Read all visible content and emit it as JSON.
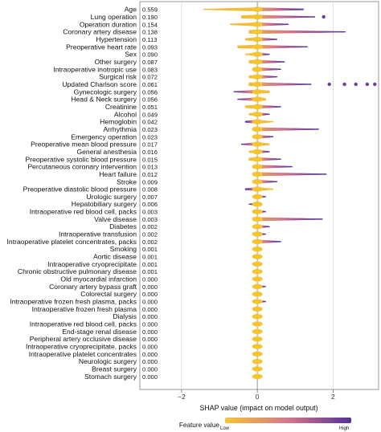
{
  "chart_data": {
    "type": "scatter",
    "title": "",
    "xlabel": "SHAP value (impact on model output)",
    "ylabel": "",
    "xlim": [
      -3.1,
      3.2
    ],
    "xticks": [
      -2,
      0,
      2
    ],
    "grid": true,
    "legend": {
      "title": "Feature value",
      "low": "Low",
      "high": "High",
      "position": "bottom-center"
    },
    "colors": {
      "low": "#f5c431",
      "mid": "#d5768a",
      "high": "#55309a",
      "zero_line": "#999999",
      "grid": "#d9d9d9"
    },
    "features": [
      {
        "name": "Age",
        "importance": "0.559",
        "neg": -1.4,
        "pos": 1.2,
        "high_side": "pos",
        "outliers": []
      },
      {
        "name": "Lung operation",
        "importance": "0.190",
        "neg": -0.4,
        "pos": 1.5,
        "high_side": "pos",
        "outliers": [
          1.75
        ]
      },
      {
        "name": "Operation duration",
        "importance": "0.154",
        "neg": -0.7,
        "pos": 0.8,
        "high_side": "pos",
        "outliers": []
      },
      {
        "name": "Coronary artery disease",
        "importance": "0.138",
        "neg": -0.2,
        "pos": 2.3,
        "high_side": "pos",
        "outliers": []
      },
      {
        "name": "Hypertension",
        "importance": "0.113",
        "neg": -0.3,
        "pos": 0.5,
        "high_side": "pos",
        "outliers": []
      },
      {
        "name": "Preoperative heart rate",
        "importance": "0.093",
        "neg": -0.5,
        "pos": 1.3,
        "high_side": "pos",
        "outliers": []
      },
      {
        "name": "Sex",
        "importance": "0.090",
        "neg": -0.3,
        "pos": 0.3,
        "high_side": "pos",
        "outliers": []
      },
      {
        "name": "Other surgery",
        "importance": "0.087",
        "neg": -0.2,
        "pos": 0.7,
        "high_side": "pos",
        "outliers": []
      },
      {
        "name": "Intraoperative inotropic use",
        "importance": "0.083",
        "neg": -0.1,
        "pos": 0.6,
        "high_side": "pos",
        "outliers": []
      },
      {
        "name": "Surgical risk",
        "importance": "0.072",
        "neg": -0.2,
        "pos": 0.5,
        "high_side": "pos",
        "outliers": []
      },
      {
        "name": "Updated Charlson score",
        "importance": "0.061",
        "neg": -0.2,
        "pos": 1.4,
        "high_side": "pos",
        "outliers": [
          1.9,
          2.3,
          2.6,
          2.9,
          3.1
        ]
      },
      {
        "name": "Gynecologic surgery",
        "importance": "0.056",
        "neg": -0.6,
        "pos": 0.3,
        "high_side": "neg",
        "outliers": []
      },
      {
        "name": "Head & Neck surgery",
        "importance": "0.056",
        "neg": -0.5,
        "pos": 0.2,
        "high_side": "neg",
        "outliers": []
      },
      {
        "name": "Creatinine",
        "importance": "0.051",
        "neg": -0.3,
        "pos": 0.6,
        "high_side": "pos",
        "outliers": []
      },
      {
        "name": "Alcohol",
        "importance": "0.049",
        "neg": -0.2,
        "pos": 0.3,
        "high_side": "pos",
        "outliers": []
      },
      {
        "name": "Hemoglobin",
        "importance": "0.042",
        "neg": -0.3,
        "pos": 0.4,
        "high_side": "neg",
        "outliers": []
      },
      {
        "name": "Arrhythmia",
        "importance": "0.023",
        "neg": -0.1,
        "pos": 1.6,
        "high_side": "pos",
        "outliers": []
      },
      {
        "name": "Emergency operation",
        "importance": "0.023",
        "neg": -0.1,
        "pos": 0.4,
        "high_side": "pos",
        "outliers": []
      },
      {
        "name": "Preoperative mean blood pressure",
        "importance": "0.017",
        "neg": -0.4,
        "pos": 0.3,
        "high_side": "neg",
        "outliers": []
      },
      {
        "name": "General anesthesia",
        "importance": "0.016",
        "neg": -0.2,
        "pos": 0.3,
        "high_side": "pos",
        "outliers": []
      },
      {
        "name": "Preoperative systolic blood pressure",
        "importance": "0.015",
        "neg": -0.2,
        "pos": 0.6,
        "high_side": "pos",
        "outliers": []
      },
      {
        "name": "Percutaneous coronary intervention",
        "importance": "0.013",
        "neg": -0.1,
        "pos": 0.9,
        "high_side": "pos",
        "outliers": []
      },
      {
        "name": "Heart failure",
        "importance": "0.012",
        "neg": -0.1,
        "pos": 1.8,
        "high_side": "pos",
        "outliers": []
      },
      {
        "name": "Stroke",
        "importance": "0.009",
        "neg": -0.1,
        "pos": 0.5,
        "high_side": "pos",
        "outliers": []
      },
      {
        "name": "Preoperative diastolic blood pressure",
        "importance": "0.008",
        "neg": -0.3,
        "pos": 0.4,
        "high_side": "neg",
        "outliers": []
      },
      {
        "name": "Urologic surgery",
        "importance": "0.007",
        "neg": -0.1,
        "pos": 0.2,
        "high_side": "pos",
        "outliers": []
      },
      {
        "name": "Hepatobiliary surgery",
        "importance": "0.006",
        "neg": -0.2,
        "pos": 0.1,
        "high_side": "neg",
        "outliers": []
      },
      {
        "name": "Intraoperative red blood cell, packs",
        "importance": "0.003",
        "neg": -0.1,
        "pos": 0.2,
        "high_side": "pos",
        "outliers": []
      },
      {
        "name": "Valve disease",
        "importance": "0.003",
        "neg": -0.1,
        "pos": 1.7,
        "high_side": "pos",
        "outliers": []
      },
      {
        "name": "Diabetes",
        "importance": "0.002",
        "neg": -0.1,
        "pos": 0.3,
        "high_side": "pos",
        "outliers": []
      },
      {
        "name": "Intraoperative transfusion",
        "importance": "0.002",
        "neg": -0.1,
        "pos": 0.2,
        "high_side": "pos",
        "outliers": []
      },
      {
        "name": "Intraoperative platelet concentrates, packs",
        "importance": "0.002",
        "neg": -0.1,
        "pos": 0.6,
        "high_side": "pos",
        "outliers": []
      },
      {
        "name": "Smoking",
        "importance": "0.001",
        "neg": -0.1,
        "pos": 0.1,
        "high_side": "pos",
        "outliers": []
      },
      {
        "name": "Aortic disease",
        "importance": "0.001",
        "neg": -0.1,
        "pos": 0.1,
        "high_side": "pos",
        "outliers": []
      },
      {
        "name": "Intraoperative cryoprecipitate",
        "importance": "0.001",
        "neg": -0.1,
        "pos": 0.1,
        "high_side": "pos",
        "outliers": []
      },
      {
        "name": "Chronic obstructive pulmonary disease",
        "importance": "0.001",
        "neg": -0.1,
        "pos": 0.1,
        "high_side": "pos",
        "outliers": []
      },
      {
        "name": "Old myocardial infarction",
        "importance": "0.000",
        "neg": -0.1,
        "pos": 0.1,
        "high_side": "pos",
        "outliers": []
      },
      {
        "name": "Coronary artery bypass graft",
        "importance": "0.000",
        "neg": -0.1,
        "pos": 0.2,
        "high_side": "pos",
        "outliers": []
      },
      {
        "name": "Colorectal surgery",
        "importance": "0.000",
        "neg": -0.1,
        "pos": 0.1,
        "high_side": "pos",
        "outliers": []
      },
      {
        "name": "Intraoperative frozen fresh plasma, packs",
        "importance": "0.000",
        "neg": -0.1,
        "pos": 0.2,
        "high_side": "pos",
        "outliers": []
      },
      {
        "name": "Intraoperative frozen fresh plasma",
        "importance": "0.000",
        "neg": -0.1,
        "pos": 0.1,
        "high_side": "pos",
        "outliers": []
      },
      {
        "name": "Dialysis",
        "importance": "0.000",
        "neg": -0.1,
        "pos": 0.1,
        "high_side": "pos",
        "outliers": []
      },
      {
        "name": "Intraoperative red blood cell, packs",
        "importance": "0.000",
        "neg": -0.05,
        "pos": 0.1,
        "high_side": "pos",
        "outliers": []
      },
      {
        "name": "End-stage renal disease",
        "importance": "0.000",
        "neg": -0.05,
        "pos": 0.05,
        "high_side": "pos",
        "outliers": []
      },
      {
        "name": "Peripheral artery occlusive disease",
        "importance": "0.000",
        "neg": -0.05,
        "pos": 0.05,
        "high_side": "pos",
        "outliers": []
      },
      {
        "name": "Intraoperative cryoprecipitate, packs",
        "importance": "0.000",
        "neg": -0.05,
        "pos": 0.05,
        "high_side": "pos",
        "outliers": []
      },
      {
        "name": "Intraoperative platelet concentrates",
        "importance": "0.000",
        "neg": -0.05,
        "pos": 0.05,
        "high_side": "pos",
        "outliers": []
      },
      {
        "name": "Neurologic surgery",
        "importance": "0.000",
        "neg": -0.05,
        "pos": 0.05,
        "high_side": "pos",
        "outliers": []
      },
      {
        "name": "Breast surgery",
        "importance": "0.000",
        "neg": -0.05,
        "pos": 0.05,
        "high_side": "pos",
        "outliers": []
      },
      {
        "name": "Stomach surgery",
        "importance": "0.000",
        "neg": -0.05,
        "pos": 0.05,
        "high_side": "pos",
        "outliers": []
      }
    ]
  }
}
